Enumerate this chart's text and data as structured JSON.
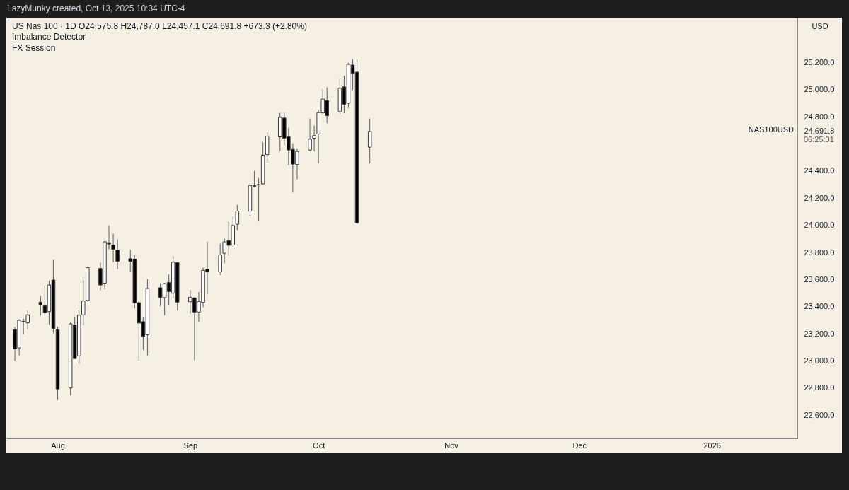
{
  "chart_data": {
    "type": "candlestick",
    "title": "US Nas 100 · 1D O24,575.8 H24,787.0 L24,457.1 C24,691.8 +673.3 (+2.80%)",
    "ylabel": "USD",
    "x": [
      "2025-07-22",
      "2025-07-23",
      "2025-07-24",
      "2025-07-25",
      "2025-07-28",
      "2025-07-29",
      "2025-07-30",
      "2025-07-31",
      "2025-08-01",
      "2025-08-04",
      "2025-08-05",
      "2025-08-06",
      "2025-08-07",
      "2025-08-08",
      "2025-08-11",
      "2025-08-12",
      "2025-08-13",
      "2025-08-14",
      "2025-08-15",
      "2025-08-18",
      "2025-08-19",
      "2025-08-20",
      "2025-08-21",
      "2025-08-22",
      "2025-08-25",
      "2025-08-26",
      "2025-08-27",
      "2025-08-28",
      "2025-08-29",
      "2025-09-01",
      "2025-09-02",
      "2025-09-03",
      "2025-09-04",
      "2025-09-05",
      "2025-09-08",
      "2025-09-09",
      "2025-09-10",
      "2025-09-11",
      "2025-09-12",
      "2025-09-15",
      "2025-09-16",
      "2025-09-17",
      "2025-09-18",
      "2025-09-19",
      "2025-09-22",
      "2025-09-23",
      "2025-09-24",
      "2025-09-25",
      "2025-09-26",
      "2025-09-29",
      "2025-09-30",
      "2025-10-01",
      "2025-10-02",
      "2025-10-03",
      "2025-10-06",
      "2025-10-07",
      "2025-10-08",
      "2025-10-09",
      "2025-10-10",
      "2025-10-13"
    ],
    "ohlc": [
      [
        23231,
        23252,
        23002,
        23089
      ],
      [
        23096,
        23309,
        23040,
        23300
      ],
      [
        23292,
        23314,
        23196,
        23290
      ],
      [
        23281,
        23370,
        23231,
        23340
      ],
      [
        23434,
        23481,
        23335,
        23413
      ],
      [
        23408,
        23557,
        23335,
        23357
      ],
      [
        23364,
        23592,
        23269,
        23560
      ],
      [
        23597,
        23746,
        23205,
        23240
      ],
      [
        23231,
        23253,
        22711,
        22794
      ],
      [
        22801,
        23283,
        22749,
        23274
      ],
      [
        23266,
        23326,
        23015,
        23018
      ],
      [
        23037,
        23373,
        22980,
        23338
      ],
      [
        23340,
        23595,
        23262,
        23442
      ],
      [
        23446,
        23695,
        23440,
        23689
      ],
      [
        23682,
        23725,
        23522,
        23560
      ],
      [
        23574,
        23883,
        23531,
        23879
      ],
      [
        23872,
        23999,
        23824,
        23862
      ],
      [
        23855,
        23938,
        23730,
        23824
      ],
      [
        23817,
        23897,
        23676,
        23735
      ],
      [
        23754,
        23820,
        23661,
        23734
      ],
      [
        23751,
        23782,
        23387,
        23429
      ],
      [
        23430,
        23439,
        22997,
        23280
      ],
      [
        23290,
        23326,
        23082,
        23182
      ],
      [
        23193,
        23602,
        23040,
        23534
      ],
      [
        23540,
        23574,
        23404,
        23470
      ],
      [
        23467,
        23574,
        23338,
        23571
      ],
      [
        23578,
        23637,
        23408,
        23512
      ],
      [
        23500,
        23772,
        23460,
        23728
      ],
      [
        23725,
        23730,
        23373,
        23434
      ],
      [
        23437,
        23526,
        23349,
        23470
      ],
      [
        23465,
        23470,
        23006,
        23361
      ],
      [
        23361,
        23508,
        23288,
        23439
      ],
      [
        23432,
        23689,
        23396,
        23668
      ],
      [
        23678,
        23879,
        23491,
        23657
      ],
      [
        23657,
        23865,
        23633,
        23782
      ],
      [
        23794,
        23903,
        23720,
        23878
      ],
      [
        23888,
        24028,
        23780,
        23853
      ],
      [
        23855,
        24063,
        23838,
        23999
      ],
      [
        24008,
        24150,
        23966,
        24105
      ],
      [
        24105,
        24314,
        24070,
        24294
      ],
      [
        24293,
        24401,
        24280,
        24288
      ],
      [
        24300,
        24349,
        24033,
        24298
      ],
      [
        24306,
        24612,
        24302,
        24517
      ],
      [
        24521,
        24687,
        24458,
        24658
      ],
      [
        24652,
        24829,
        24548,
        24796
      ],
      [
        24791,
        24829,
        24590,
        24642
      ],
      [
        24652,
        24718,
        24444,
        24555
      ],
      [
        24560,
        24604,
        24240,
        24451
      ],
      [
        24448,
        24562,
        24340,
        24545
      ],
      [
        24555,
        24788,
        24545,
        24635
      ],
      [
        24642,
        24736,
        24545,
        24661
      ],
      [
        24673,
        24852,
        24458,
        24831
      ],
      [
        24829,
        25002,
        24822,
        24930
      ],
      [
        24919,
        25016,
        24751,
        24808
      ],
      [
        24838,
        25082,
        24822,
        25011
      ],
      [
        25020,
        25103,
        24826,
        24892
      ],
      [
        24900,
        25198,
        24864,
        25186
      ],
      [
        25181,
        25224,
        24999,
        25120
      ],
      [
        25129,
        25224,
        24011,
        24018.5
      ],
      [
        24575.8,
        24787.0,
        24457.1,
        24691.8
      ]
    ],
    "colors": [
      "#000000",
      "#ffffff",
      "#000000",
      "#ffffff",
      "#000000",
      "#000000",
      "#ffffff",
      "#000000",
      "#000000",
      "#ffffff",
      "#000000",
      "#ffffff",
      "#ffffff",
      "#ffffff",
      "#000000",
      "#ffffff",
      "#000000",
      "#000000",
      "#000000",
      "#000000",
      "#000000",
      "#000000",
      "#000000",
      "#ffffff",
      "#000000",
      "#ffffff",
      "#000000",
      "#ffffff",
      "#000000",
      "#ffffff",
      "#000000",
      "#ffffff",
      "#ffffff",
      "#000000",
      "#ffffff",
      "#ffffff",
      "#000000",
      "#ffffff",
      "#ffffff",
      "#ffffff",
      "#000000",
      "#000000",
      "#ffffff",
      "#ffffff",
      "#ffffff",
      "#000000",
      "#000000",
      "#000000",
      "#ffffff",
      "#ffffff",
      "#ffffff",
      "#ffffff",
      "#ffffff",
      "#000000",
      "#ffffff",
      "#000000",
      "#ffffff",
      "#000000",
      "#000000",
      "#ffffff"
    ],
    "xlim": [
      "2025-07-20",
      "2026-01-21"
    ],
    "xticks": [
      {
        "value": "2025-08-01",
        "label": "Aug"
      },
      {
        "value": "2025-09-01",
        "label": "Sep"
      },
      {
        "value": "2025-10-01",
        "label": "Oct"
      },
      {
        "value": "2025-11-01",
        "label": "Nov"
      },
      {
        "value": "2025-12-01",
        "label": "Dec"
      },
      {
        "value": "2026-01-01",
        "label": "2026"
      }
    ],
    "ylim": [
      22430,
      25530
    ],
    "yticks": [
      {
        "value": 22600,
        "label": "22,600.0"
      },
      {
        "value": 22800,
        "label": "22,800.0"
      },
      {
        "value": 23000,
        "label": "23,000.0"
      },
      {
        "value": 23200,
        "label": "23,200.0"
      },
      {
        "value": 23400,
        "label": "23,400.0"
      },
      {
        "value": 23600,
        "label": "23,600.0"
      },
      {
        "value": 23800,
        "label": "23,800.0"
      },
      {
        "value": 24000,
        "label": "24,000.0"
      },
      {
        "value": 24200,
        "label": "24,200.0"
      },
      {
        "value": 24400,
        "label": "24,400.0"
      },
      {
        "value": 24691.8,
        "label": "24,691.8"
      },
      {
        "value": 24800,
        "label": "24,800.0"
      },
      {
        "value": 25000,
        "label": "25,000.0"
      },
      {
        "value": 25200,
        "label": "25,200.0"
      }
    ],
    "annotations": [
      "Imbalance Detector",
      "FX Session",
      "NAS100USD",
      "06:25:01",
      "LazyMunky created, Oct 13, 2025 10:34 UTC-4"
    ]
  }
}
